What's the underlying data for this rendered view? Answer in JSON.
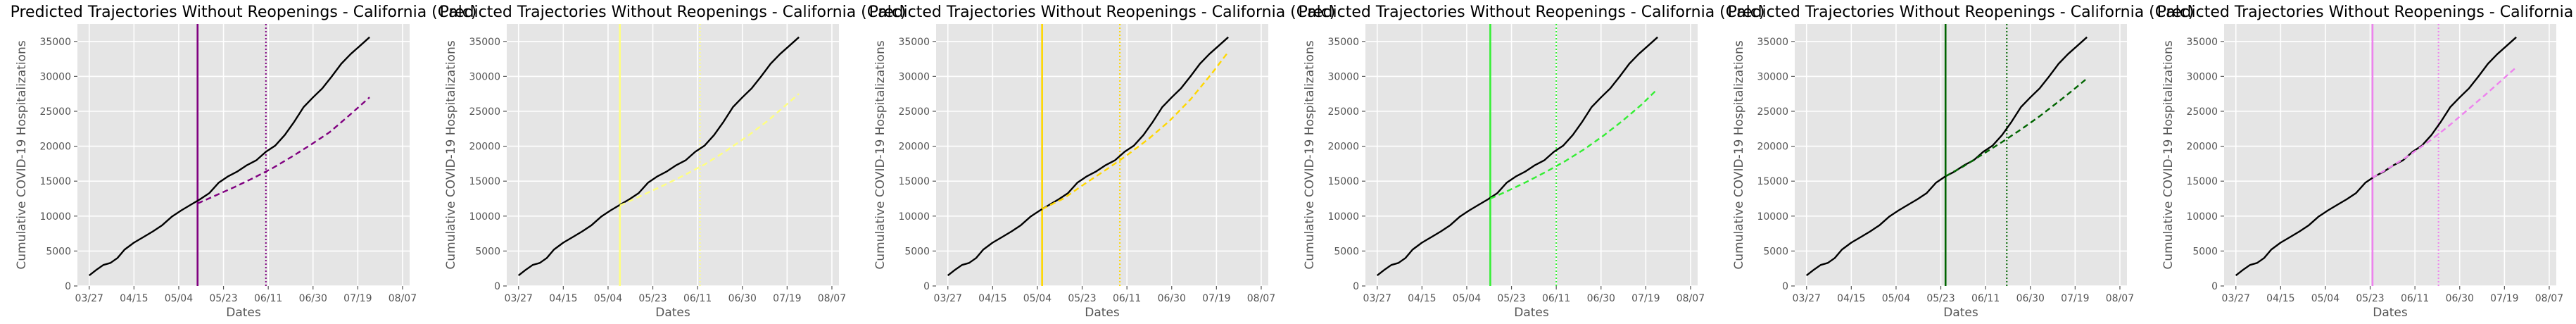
{
  "chart_data": [
    {
      "type": "line",
      "title": "Predicted Trajectories Without Reopenings - California (Calc)",
      "xlabel": "Dates",
      "ylabel": "Cumulative COVID-19 Hospitalizations",
      "xlim": [
        "2020-03-22",
        "2020-08-10"
      ],
      "ylim": [
        0,
        37500
      ],
      "x_ticks": [
        "03/27",
        "04/15",
        "05/04",
        "05/23",
        "06/11",
        "06/30",
        "07/19",
        "08/07"
      ],
      "y_ticks": [
        0,
        5000,
        10000,
        15000,
        20000,
        25000,
        30000,
        35000
      ],
      "grid": true,
      "accent_color": "#800080",
      "vlines": [
        {
          "x": "2020-05-12",
          "style": "solid"
        },
        {
          "x": "2020-06-10",
          "style": "dotted"
        }
      ],
      "series": [
        {
          "color": "#000000",
          "style": "solid",
          "x": [
            "2020-03-27",
            "2020-03-30",
            "2020-04-02",
            "2020-04-05",
            "2020-04-08",
            "2020-04-11",
            "2020-04-15",
            "2020-04-19",
            "2020-04-23",
            "2020-04-27",
            "2020-05-01",
            "2020-05-05",
            "2020-05-09",
            "2020-05-13",
            "2020-05-17",
            "2020-05-21",
            "2020-05-25",
            "2020-05-29",
            "2020-06-02",
            "2020-06-06",
            "2020-06-10",
            "2020-06-14",
            "2020-06-18",
            "2020-06-22",
            "2020-06-26",
            "2020-06-30",
            "2020-07-04",
            "2020-07-08",
            "2020-07-12",
            "2020-07-16",
            "2020-07-20",
            "2020-07-24"
          ],
          "y": [
            1500,
            2300,
            3000,
            3300,
            4000,
            5200,
            6200,
            7000,
            7800,
            8700,
            9900,
            10800,
            11600,
            12400,
            13300,
            14800,
            15700,
            16400,
            17300,
            18000,
            19200,
            20100,
            21600,
            23500,
            25600,
            27000,
            28300,
            30000,
            31800,
            33200,
            34400,
            35600
          ]
        },
        {
          "color": "#800080",
          "style": "dashed",
          "x": [
            "2020-05-12",
            "2020-05-20",
            "2020-05-28",
            "2020-06-05",
            "2020-06-13",
            "2020-06-21",
            "2020-06-29",
            "2020-07-07",
            "2020-07-15",
            "2020-07-24"
          ],
          "y": [
            11800,
            13000,
            14200,
            15500,
            16900,
            18500,
            20200,
            22000,
            24300,
            27000
          ]
        }
      ]
    },
    {
      "type": "line",
      "title": "Predicted Trajectories Without Reopenings - California (Calc)",
      "xlabel": "Dates",
      "ylabel": "Cumulative COVID-19 Hospitalizations",
      "xlim": [
        "2020-03-22",
        "2020-08-10"
      ],
      "ylim": [
        0,
        37500
      ],
      "x_ticks": [
        "03/27",
        "04/15",
        "05/04",
        "05/23",
        "06/11",
        "06/30",
        "07/19",
        "08/07"
      ],
      "y_ticks": [
        0,
        5000,
        10000,
        15000,
        20000,
        25000,
        30000,
        35000
      ],
      "grid": true,
      "accent_color": "#ffff80",
      "vlines": [
        {
          "x": "2020-05-09",
          "style": "solid"
        },
        {
          "x": "2020-06-12",
          "style": "dotted"
        }
      ],
      "series": [
        {
          "color": "#000000",
          "style": "solid",
          "x": [
            "2020-03-27",
            "2020-03-30",
            "2020-04-02",
            "2020-04-05",
            "2020-04-08",
            "2020-04-11",
            "2020-04-15",
            "2020-04-19",
            "2020-04-23",
            "2020-04-27",
            "2020-05-01",
            "2020-05-05",
            "2020-05-09",
            "2020-05-13",
            "2020-05-17",
            "2020-05-21",
            "2020-05-25",
            "2020-05-29",
            "2020-06-02",
            "2020-06-06",
            "2020-06-10",
            "2020-06-14",
            "2020-06-18",
            "2020-06-22",
            "2020-06-26",
            "2020-06-30",
            "2020-07-04",
            "2020-07-08",
            "2020-07-12",
            "2020-07-16",
            "2020-07-20",
            "2020-07-24"
          ],
          "y": [
            1500,
            2300,
            3000,
            3300,
            4000,
            5200,
            6200,
            7000,
            7800,
            8700,
            9900,
            10800,
            11600,
            12400,
            13300,
            14800,
            15700,
            16400,
            17300,
            18000,
            19200,
            20100,
            21600,
            23500,
            25600,
            27000,
            28300,
            30000,
            31800,
            33200,
            34400,
            35600
          ]
        },
        {
          "color": "#ffff80",
          "style": "dashed",
          "x": [
            "2020-05-09",
            "2020-05-18",
            "2020-05-27",
            "2020-06-05",
            "2020-06-14",
            "2020-06-23",
            "2020-07-02",
            "2020-07-11",
            "2020-07-24"
          ],
          "y": [
            11500,
            12900,
            14300,
            15800,
            17400,
            19300,
            21400,
            23700,
            27500
          ]
        }
      ]
    },
    {
      "type": "line",
      "title": "Predicted Trajectories Without Reopenings - California (Calc)",
      "xlabel": "Dates",
      "ylabel": "Cumulative COVID-19 Hospitalizations",
      "xlim": [
        "2020-03-22",
        "2020-08-10"
      ],
      "ylim": [
        0,
        37500
      ],
      "x_ticks": [
        "03/27",
        "04/15",
        "05/04",
        "05/23",
        "06/11",
        "06/30",
        "07/19",
        "08/07"
      ],
      "y_ticks": [
        0,
        5000,
        10000,
        15000,
        20000,
        25000,
        30000,
        35000
      ],
      "grid": true,
      "accent_color": "#ffd700",
      "vlines": [
        {
          "x": "2020-05-06",
          "style": "solid"
        },
        {
          "x": "2020-06-08",
          "style": "dotted"
        }
      ],
      "series": [
        {
          "color": "#000000",
          "style": "solid",
          "x": [
            "2020-03-27",
            "2020-03-30",
            "2020-04-02",
            "2020-04-05",
            "2020-04-08",
            "2020-04-11",
            "2020-04-15",
            "2020-04-19",
            "2020-04-23",
            "2020-04-27",
            "2020-05-01",
            "2020-05-05",
            "2020-05-09",
            "2020-05-13",
            "2020-05-17",
            "2020-05-21",
            "2020-05-25",
            "2020-05-29",
            "2020-06-02",
            "2020-06-06",
            "2020-06-10",
            "2020-06-14",
            "2020-06-18",
            "2020-06-22",
            "2020-06-26",
            "2020-06-30",
            "2020-07-04",
            "2020-07-08",
            "2020-07-12",
            "2020-07-16",
            "2020-07-20",
            "2020-07-24"
          ],
          "y": [
            1500,
            2300,
            3000,
            3300,
            4000,
            5200,
            6200,
            7000,
            7800,
            8700,
            9900,
            10800,
            11600,
            12400,
            13300,
            14800,
            15700,
            16400,
            17300,
            18000,
            19200,
            20100,
            21600,
            23500,
            25600,
            27000,
            28300,
            30000,
            31800,
            33200,
            34400,
            35600
          ]
        },
        {
          "color": "#ffd700",
          "style": "dashed",
          "x": [
            "2020-05-06",
            "2020-05-15",
            "2020-05-24",
            "2020-06-02",
            "2020-06-11",
            "2020-06-20",
            "2020-06-29",
            "2020-07-08",
            "2020-07-17",
            "2020-07-24"
          ],
          "y": [
            11000,
            12500,
            14600,
            16600,
            18700,
            21000,
            23600,
            26700,
            30400,
            33500
          ]
        }
      ]
    },
    {
      "type": "line",
      "title": "Predicted Trajectories Without Reopenings - California (Calc)",
      "xlabel": "Dates",
      "ylabel": "Cumulative COVID-19 Hospitalizations",
      "xlim": [
        "2020-03-22",
        "2020-08-10"
      ],
      "ylim": [
        0,
        37500
      ],
      "x_ticks": [
        "03/27",
        "04/15",
        "05/04",
        "05/23",
        "06/11",
        "06/30",
        "07/19",
        "08/07"
      ],
      "y_ticks": [
        0,
        5000,
        10000,
        15000,
        20000,
        25000,
        30000,
        35000
      ],
      "grid": true,
      "accent_color": "#33ee33",
      "vlines": [
        {
          "x": "2020-05-14",
          "style": "solid"
        },
        {
          "x": "2020-06-11",
          "style": "dotted"
        }
      ],
      "series": [
        {
          "color": "#000000",
          "style": "solid",
          "x": [
            "2020-03-27",
            "2020-03-30",
            "2020-04-02",
            "2020-04-05",
            "2020-04-08",
            "2020-04-11",
            "2020-04-15",
            "2020-04-19",
            "2020-04-23",
            "2020-04-27",
            "2020-05-01",
            "2020-05-05",
            "2020-05-09",
            "2020-05-13",
            "2020-05-17",
            "2020-05-21",
            "2020-05-25",
            "2020-05-29",
            "2020-06-02",
            "2020-06-06",
            "2020-06-10",
            "2020-06-14",
            "2020-06-18",
            "2020-06-22",
            "2020-06-26",
            "2020-06-30",
            "2020-07-04",
            "2020-07-08",
            "2020-07-12",
            "2020-07-16",
            "2020-07-20",
            "2020-07-24"
          ],
          "y": [
            1500,
            2300,
            3000,
            3300,
            4000,
            5200,
            6200,
            7000,
            7800,
            8700,
            9900,
            10800,
            11600,
            12400,
            13300,
            14800,
            15700,
            16400,
            17300,
            18000,
            19200,
            20100,
            21600,
            23500,
            25600,
            27000,
            28300,
            30000,
            31800,
            33200,
            34400,
            35600
          ]
        },
        {
          "color": "#33ee33",
          "style": "dashed",
          "x": [
            "2020-05-14",
            "2020-05-22",
            "2020-05-30",
            "2020-06-07",
            "2020-06-15",
            "2020-06-23",
            "2020-07-01",
            "2020-07-09",
            "2020-07-17",
            "2020-07-24"
          ],
          "y": [
            12500,
            13700,
            15000,
            16400,
            17900,
            19600,
            21500,
            23600,
            25900,
            28200
          ]
        }
      ]
    },
    {
      "type": "line",
      "title": "Predicted Trajectories Without Reopenings - California (Calc)",
      "xlabel": "Dates",
      "ylabel": "Cumulative COVID-19 Hospitalizations",
      "xlim": [
        "2020-03-22",
        "2020-08-10"
      ],
      "ylim": [
        0,
        37500
      ],
      "x_ticks": [
        "03/27",
        "04/15",
        "05/04",
        "05/23",
        "06/11",
        "06/30",
        "07/19",
        "08/07"
      ],
      "y_ticks": [
        0,
        5000,
        10000,
        15000,
        20000,
        25000,
        30000,
        35000
      ],
      "grid": true,
      "accent_color": "#006400",
      "vlines": [
        {
          "x": "2020-05-25",
          "style": "solid"
        },
        {
          "x": "2020-06-20",
          "style": "dotted"
        }
      ],
      "series": [
        {
          "color": "#000000",
          "style": "solid",
          "x": [
            "2020-03-27",
            "2020-03-30",
            "2020-04-02",
            "2020-04-05",
            "2020-04-08",
            "2020-04-11",
            "2020-04-15",
            "2020-04-19",
            "2020-04-23",
            "2020-04-27",
            "2020-05-01",
            "2020-05-05",
            "2020-05-09",
            "2020-05-13",
            "2020-05-17",
            "2020-05-21",
            "2020-05-25",
            "2020-05-29",
            "2020-06-02",
            "2020-06-06",
            "2020-06-10",
            "2020-06-14",
            "2020-06-18",
            "2020-06-22",
            "2020-06-26",
            "2020-06-30",
            "2020-07-04",
            "2020-07-08",
            "2020-07-12",
            "2020-07-16",
            "2020-07-20",
            "2020-07-24"
          ],
          "y": [
            1500,
            2300,
            3000,
            3300,
            4000,
            5200,
            6200,
            7000,
            7800,
            8700,
            9900,
            10800,
            11600,
            12400,
            13300,
            14800,
            15700,
            16400,
            17300,
            18000,
            19200,
            20100,
            21600,
            23500,
            25600,
            27000,
            28300,
            30000,
            31800,
            33200,
            34400,
            35600
          ]
        },
        {
          "color": "#006400",
          "style": "dashed",
          "x": [
            "2020-05-25",
            "2020-06-02",
            "2020-06-10",
            "2020-06-18",
            "2020-06-26",
            "2020-07-04",
            "2020-07-12",
            "2020-07-18",
            "2020-07-24"
          ],
          "y": [
            15700,
            17200,
            18900,
            20600,
            22400,
            24300,
            26400,
            28000,
            29700
          ]
        }
      ]
    },
    {
      "type": "line",
      "title": "Predicted Trajectories Without Reopenings - California (Calc)",
      "xlabel": "Dates",
      "ylabel": "Cumulative COVID-19 Hospitalizations",
      "xlim": [
        "2020-03-22",
        "2020-08-10"
      ],
      "ylim": [
        0,
        37500
      ],
      "x_ticks": [
        "03/27",
        "04/15",
        "05/04",
        "05/23",
        "06/11",
        "06/30",
        "07/19",
        "08/07"
      ],
      "y_ticks": [
        0,
        5000,
        10000,
        15000,
        20000,
        25000,
        30000,
        35000
      ],
      "grid": true,
      "accent_color": "#ee82ee",
      "vlines": [
        {
          "x": "2020-05-24",
          "style": "solid"
        },
        {
          "x": "2020-06-21",
          "style": "dotted"
        }
      ],
      "series": [
        {
          "color": "#000000",
          "style": "solid",
          "x": [
            "2020-03-27",
            "2020-03-30",
            "2020-04-02",
            "2020-04-05",
            "2020-04-08",
            "2020-04-11",
            "2020-04-15",
            "2020-04-19",
            "2020-04-23",
            "2020-04-27",
            "2020-05-01",
            "2020-05-05",
            "2020-05-09",
            "2020-05-13",
            "2020-05-17",
            "2020-05-21",
            "2020-05-25",
            "2020-05-29",
            "2020-06-02",
            "2020-06-06",
            "2020-06-10",
            "2020-06-14",
            "2020-06-18",
            "2020-06-22",
            "2020-06-26",
            "2020-06-30",
            "2020-07-04",
            "2020-07-08",
            "2020-07-12",
            "2020-07-16",
            "2020-07-20",
            "2020-07-24"
          ],
          "y": [
            1500,
            2300,
            3000,
            3300,
            4000,
            5200,
            6200,
            7000,
            7800,
            8700,
            9900,
            10800,
            11600,
            12400,
            13300,
            14800,
            15700,
            16400,
            17300,
            18000,
            19200,
            20100,
            21600,
            23500,
            25600,
            27000,
            28300,
            30000,
            31800,
            33200,
            34400,
            35600
          ]
        },
        {
          "color": "#ee82ee",
          "style": "dashed",
          "x": [
            "2020-05-24",
            "2020-06-01",
            "2020-06-09",
            "2020-06-17",
            "2020-06-25",
            "2020-07-03",
            "2020-07-11",
            "2020-07-18",
            "2020-07-24"
          ],
          "y": [
            15500,
            17100,
            18800,
            20700,
            22800,
            25100,
            27400,
            29500,
            31300
          ]
        }
      ]
    }
  ]
}
